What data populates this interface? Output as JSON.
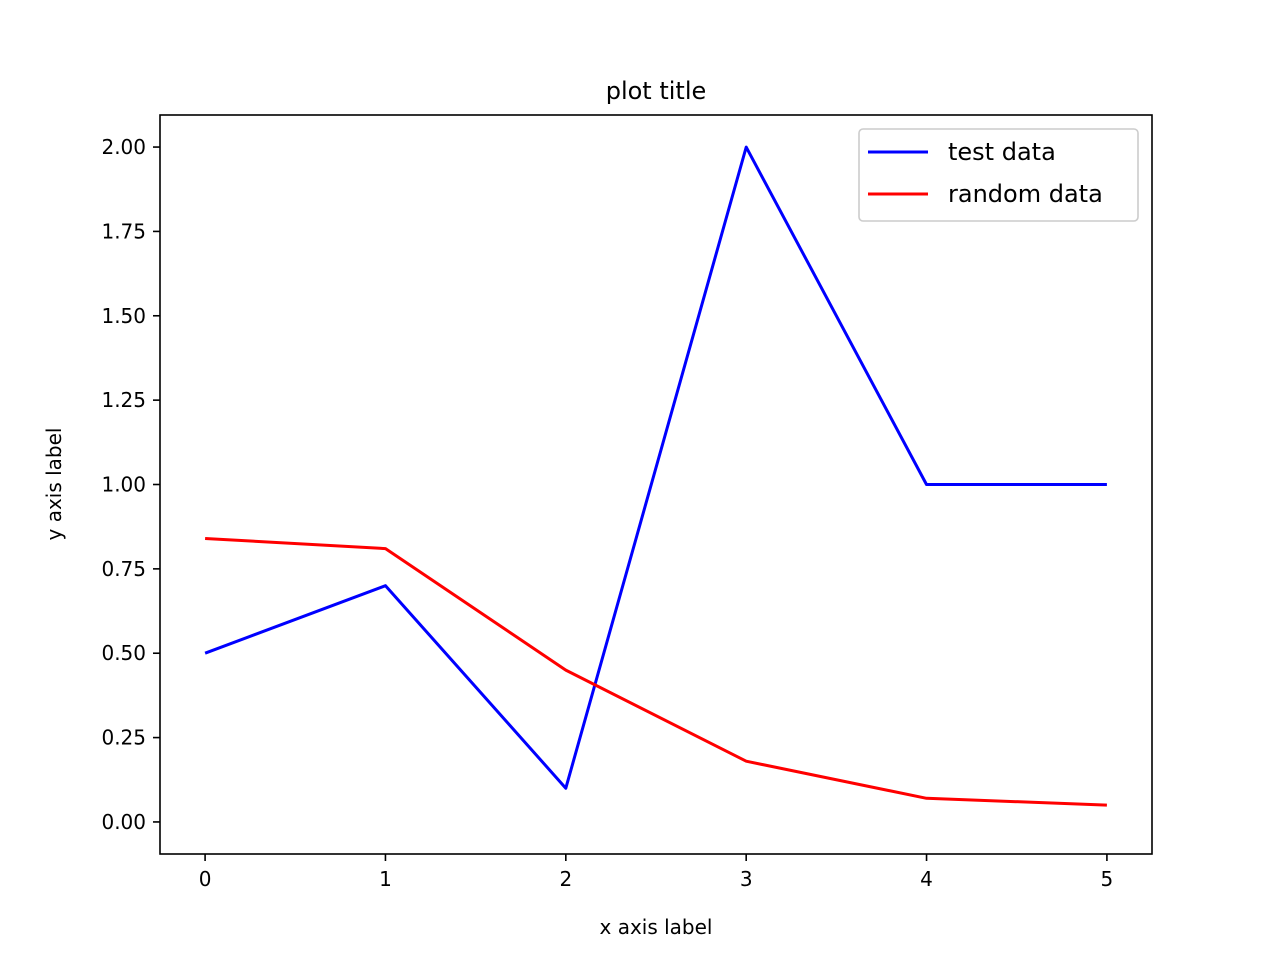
{
  "chart_data": {
    "type": "line",
    "title": "plot title",
    "xlabel": "x axis label",
    "ylabel": "y axis label",
    "x": [
      0,
      1,
      2,
      3,
      4,
      5
    ],
    "xlim": [
      -0.25,
      5.25
    ],
    "ylim": [
      -0.095,
      2.095
    ],
    "xticks": [
      0,
      1,
      2,
      3,
      4,
      5
    ],
    "xtick_labels": [
      "0",
      "1",
      "2",
      "3",
      "4",
      "5"
    ],
    "yticks": [
      0,
      0.25,
      0.5,
      0.75,
      1.0,
      1.25,
      1.5,
      1.75,
      2.0
    ],
    "ytick_labels": [
      "0.00",
      "0.25",
      "0.50",
      "0.75",
      "1.00",
      "1.25",
      "1.50",
      "1.75",
      "2.00"
    ],
    "grid": false,
    "legend_position": "top-right",
    "series": [
      {
        "name": "test data",
        "color": "#0000ff",
        "values": [
          0.5,
          0.7,
          0.1,
          2.0,
          1.0,
          1.0
        ]
      },
      {
        "name": "random data",
        "color": "#ff0000",
        "values": [
          0.84,
          0.81,
          0.45,
          0.18,
          0.07,
          0.05
        ]
      }
    ]
  }
}
